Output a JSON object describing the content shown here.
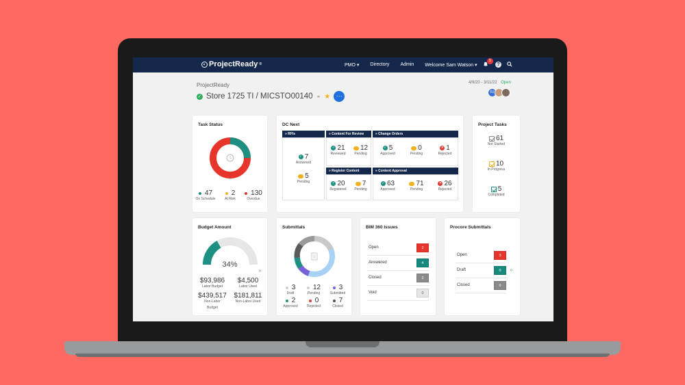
{
  "nav": {
    "logo": "ProjectReady",
    "logo_mark": "®",
    "links": [
      "PMO",
      "Directory",
      "Admin",
      "Welcome Sam Watson"
    ],
    "pmo_caret": "▾",
    "user_caret": "▾",
    "notification_count": "5"
  },
  "header": {
    "breadcrumb": "ProjectReady",
    "title": "Store 1725 TI / MICSTO00140",
    "dates": "4/9/20 - 3/11/22",
    "status": "Open",
    "avatar_initials": "RJ"
  },
  "task_status": {
    "title": "Task Status",
    "stats": [
      {
        "value": "47",
        "label": "On Schedule",
        "color": "#1d8f83"
      },
      {
        "value": "2",
        "label": "At Risk",
        "color": "#f2b01e"
      },
      {
        "value": "130",
        "label": "Overdue",
        "color": "#e03b32"
      }
    ]
  },
  "dc_next": {
    "title": "DC Next",
    "rfis": {
      "header": "RFIs",
      "answered": "7",
      "answered_label": "Answered",
      "pending": "5",
      "pending_label": "Pending"
    },
    "content_for_review": {
      "header": "Content For Review",
      "reviewed": "21",
      "reviewed_label": "Reviewed",
      "pending": "12",
      "pending_label": "Pending"
    },
    "change_orders": {
      "header": "Change Orders",
      "approved": "5",
      "approved_label": "Approved",
      "pending": "0",
      "pending_label": "Pending",
      "rejected": "1",
      "rejected_label": "Rejected"
    },
    "register_content": {
      "header": "Register Content",
      "registered": "20",
      "registered_label": "Registered",
      "pending": "7",
      "pending_label": "Pending"
    },
    "content_approval": {
      "header": "Content Approval",
      "approved": "63",
      "approved_label": "Approved",
      "pending": "71",
      "pending_label": "Pending",
      "rejected": "26",
      "rejected_label": "Rejected"
    }
  },
  "project_tasks": {
    "title": "Project Tasks",
    "items": [
      {
        "value": "61",
        "label": "Not Started",
        "color": "#777777"
      },
      {
        "value": "10",
        "label": "In Progress",
        "color": "#f2b01e"
      },
      {
        "value": "5",
        "label": "Completed",
        "color": "#1d8f83"
      }
    ]
  },
  "budget": {
    "title": "Budget Amount",
    "percent": "34%",
    "percent_value": 34,
    "labor_budget": "$93,986",
    "labor_budget_label": "Labor Budget",
    "labor_used": "$4,500",
    "labor_used_label": "Labor Used",
    "nonlabor_budget": "$439,517",
    "nonlabor_budget_label_1": "Non-Labor",
    "nonlabor_budget_label_2": "Budget",
    "nonlabor_used": "$181,811",
    "nonlabor_used_label": "Non-Labor Used"
  },
  "submittals": {
    "title": "Submittals",
    "stats": [
      {
        "value": "3",
        "label": "Draft",
        "color": "#cccccc"
      },
      {
        "value": "12",
        "label": "Pending",
        "color": "#cccccc"
      },
      {
        "value": "3",
        "label": "Submitted",
        "color": "#7b5fd6"
      },
      {
        "value": "2",
        "label": "Approved",
        "color": "#1d8f83"
      },
      {
        "value": "0",
        "label": "Rejected",
        "color": "#e03b32"
      },
      {
        "value": "7",
        "label": "Closed",
        "color": "#555555"
      }
    ]
  },
  "bim360": {
    "title": "BIM 360 Issues",
    "rows": [
      {
        "label": "Open",
        "value": "2",
        "bg": "#e8352c",
        "fg": "#ffffff"
      },
      {
        "label": "Answered",
        "value": "4",
        "bg": "#17897d",
        "fg": "#ffffff"
      },
      {
        "label": "Closed",
        "value": "2",
        "bg": "#8a8a8a",
        "fg": "#ffffff"
      },
      {
        "label": "Void",
        "value": "0",
        "bg": "#e6e6e6",
        "fg": "#555555"
      }
    ]
  },
  "procore": {
    "title": "Procore Submittals",
    "rows": [
      {
        "label": "Open",
        "value": "3",
        "bg": "#e8352c",
        "fg": "#ffffff"
      },
      {
        "label": "Draft",
        "value": "0",
        "bg": "#17897d",
        "fg": "#ffffff"
      },
      {
        "label": "Closed",
        "value": "0",
        "bg": "#8a8a8a",
        "fg": "#ffffff"
      }
    ]
  }
}
